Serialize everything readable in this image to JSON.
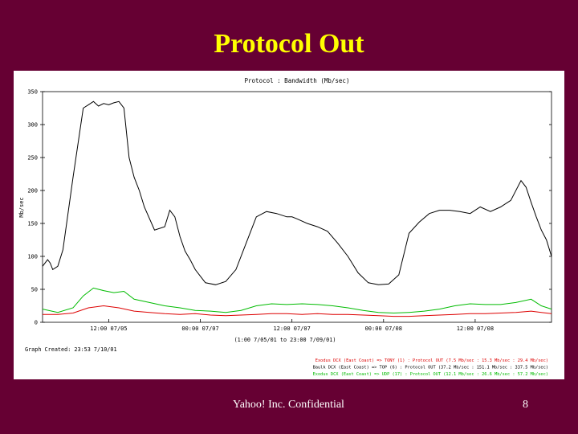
{
  "slide": {
    "title": "Protocol Out",
    "footer": "Yahoo! Inc. Confidential",
    "page_number": "8"
  },
  "chart_data": {
    "type": "line",
    "title": "Protocol : Bandwidth (Mb/sec)",
    "ylabel": "Mb/sec",
    "xlabel": "(1:00 7/05/01 to 23:00 7/09/01)",
    "ylim": [
      0,
      350
    ],
    "xlim": [
      0,
      100
    ],
    "y_ticks": [
      0,
      50,
      100,
      150,
      200,
      250,
      300,
      350
    ],
    "x_ticks": [
      {
        "x": 13,
        "label": "12:00 07/05"
      },
      {
        "x": 31,
        "label": "00:00 07/07"
      },
      {
        "x": 49,
        "label": "12:00 07/07"
      },
      {
        "x": 67,
        "label": "00:00 07/08"
      },
      {
        "x": 85,
        "label": "12:00 07/08"
      }
    ],
    "graph_created": "Graph Created: 23:53 7/10/01",
    "legend_placement": "bottom-right",
    "series": [
      {
        "name": "Baulk DCX (East Coast) => TOP (6) : Protocol OUT (37.2 Mb/sec : 151.1 Mb/sec : 337.5 Mb/sec)",
        "color": "#000000",
        "x": [
          0,
          1,
          1.5,
          2,
          3,
          4,
          6,
          8,
          9,
          10,
          11,
          12,
          13,
          14,
          15,
          16,
          17,
          18,
          19,
          20,
          22,
          24,
          25,
          26,
          27,
          28,
          29,
          30,
          31,
          32,
          34,
          36,
          38,
          40,
          42,
          44,
          46,
          48,
          49,
          50,
          52,
          54,
          56,
          58,
          60,
          62,
          64,
          66,
          68,
          70,
          72,
          74,
          76,
          78,
          80,
          82,
          84,
          86,
          88,
          90,
          92,
          94,
          95,
          96,
          97,
          98,
          99,
          100
        ],
        "values": [
          85,
          95,
          90,
          80,
          85,
          110,
          220,
          325,
          330,
          335,
          328,
          332,
          330,
          333,
          335,
          325,
          250,
          220,
          200,
          175,
          140,
          145,
          170,
          160,
          130,
          108,
          95,
          80,
          70,
          60,
          57,
          62,
          80,
          120,
          160,
          168,
          165,
          160,
          160,
          157,
          150,
          145,
          138,
          120,
          100,
          75,
          60,
          57,
          58,
          72,
          135,
          152,
          165,
          170,
          170,
          168,
          165,
          175,
          168,
          175,
          185,
          215,
          205,
          182,
          160,
          140,
          125,
          100
        ]
      },
      {
        "name": "Exodus DCX (East Coast) => TONY (1) : Protocol OUT (7.5 Mb/sec : 15.3 Mb/sec : 29.4 Mb/sec)",
        "color": "#dd0000",
        "x": [
          0,
          3,
          6,
          9,
          12,
          15,
          18,
          21,
          24,
          27,
          30,
          33,
          36,
          39,
          42,
          45,
          48,
          51,
          54,
          57,
          60,
          63,
          66,
          69,
          72,
          75,
          78,
          81,
          84,
          87,
          90,
          93,
          96,
          98,
          100
        ],
        "values": [
          12,
          12,
          14,
          22,
          25,
          22,
          17,
          15,
          13,
          12,
          13,
          11,
          10,
          11,
          12,
          13,
          13,
          12,
          13,
          12,
          12,
          11,
          10,
          9,
          9,
          10,
          11,
          12,
          13,
          13,
          14,
          15,
          17,
          15,
          13
        ]
      },
      {
        "name": "Exodus DCX (East Coast) => UDP (17) : Protocol OUT (12.1 Mb/sec : 26.6 Mb/sec : 57.2 Mb/sec)",
        "color": "#00bb00",
        "x": [
          0,
          3,
          6,
          8,
          10,
          12,
          14,
          16,
          18,
          21,
          24,
          27,
          30,
          33,
          36,
          39,
          42,
          45,
          48,
          51,
          54,
          57,
          60,
          63,
          66,
          69,
          72,
          75,
          78,
          81,
          84,
          87,
          90,
          93,
          96,
          98,
          100
        ],
        "values": [
          20,
          15,
          22,
          40,
          52,
          48,
          45,
          47,
          35,
          30,
          25,
          22,
          18,
          17,
          15,
          18,
          25,
          28,
          27,
          28,
          27,
          25,
          22,
          18,
          15,
          14,
          15,
          17,
          20,
          25,
          28,
          27,
          27,
          30,
          35,
          25,
          20
        ]
      }
    ]
  }
}
